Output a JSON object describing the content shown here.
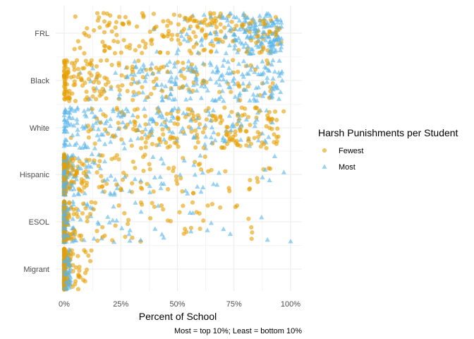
{
  "chart_data": {
    "type": "scatter",
    "title": "",
    "xlabel": "Percent of School",
    "ylabel": "",
    "caption": "Most = top 10%; Least = bottom 10%",
    "xlim": [
      0,
      100
    ],
    "x_ticks": [
      "0%",
      "25%",
      "50%",
      "75%",
      "100%"
    ],
    "x_tick_values": [
      0,
      25,
      50,
      75,
      100
    ],
    "categories": [
      "FRL",
      "Black",
      "White",
      "Hispanic",
      "ESOL",
      "Migrant"
    ],
    "grid": true,
    "jitter": "vertical within category",
    "legend": {
      "title": "Harsh Punishments per Student",
      "placement": "right",
      "entries": [
        "Fewest",
        "Most"
      ]
    },
    "series": [
      {
        "name": "Fewest",
        "color": "#E69F00",
        "shape": "circle",
        "points_per_category": {
          "FRL": 200,
          "Black": 190,
          "White": 190,
          "Hispanic": 260,
          "ESOL": 260,
          "Migrant": 170
        },
        "distribution_by_category": {
          "FRL": {
            "range": [
              4,
              96
            ],
            "mean": 52
          },
          "Black": {
            "range": [
              0,
              93
            ],
            "mean": 22
          },
          "White": {
            "range": [
              0,
              97
            ],
            "mean": 62
          },
          "Hispanic": {
            "range": [
              0,
              91
            ],
            "mean": 9
          },
          "ESOL": {
            "range": [
              0,
              83
            ],
            "mean": 6
          },
          "Migrant": {
            "range": [
              0,
              12
            ],
            "mean": 1
          }
        },
        "outliers": [
          {
            "category": "Hispanic",
            "x": 82
          },
          {
            "category": "Hispanic",
            "x": 88
          },
          {
            "category": "Hispanic",
            "x": 91
          },
          {
            "category": "Hispanic",
            "x": 65
          },
          {
            "category": "Hispanic",
            "x": 57
          },
          {
            "category": "Hispanic",
            "x": 73
          },
          {
            "category": "ESOL",
            "x": 83
          },
          {
            "category": "ESOL",
            "x": 54
          },
          {
            "category": "ESOL",
            "x": 47
          },
          {
            "category": "ESOL",
            "x": 38
          },
          {
            "category": "ESOL",
            "x": 60
          },
          {
            "category": "Migrant",
            "x": 12
          },
          {
            "category": "Migrant",
            "x": 10
          }
        ]
      },
      {
        "name": "Most",
        "color": "#56B4E9",
        "shape": "triangle",
        "points_per_category": {
          "FRL": 190,
          "Black": 200,
          "White": 200,
          "Hispanic": 220,
          "ESOL": 240,
          "Migrant": 100
        },
        "distribution_by_category": {
          "FRL": {
            "range": [
              30,
              96
            ],
            "mean": 82
          },
          "Black": {
            "range": [
              3,
              97
            ],
            "mean": 65
          },
          "White": {
            "range": [
              0,
              92
            ],
            "mean": 32
          },
          "Hispanic": {
            "range": [
              0,
              97
            ],
            "mean": 10
          },
          "ESOL": {
            "range": [
              0,
              100
            ],
            "mean": 6
          },
          "Migrant": {
            "range": [
              0,
              3
            ],
            "mean": 1
          }
        },
        "outliers": [
          {
            "category": "Hispanic",
            "x": 97
          },
          {
            "category": "Hispanic",
            "x": 93
          },
          {
            "category": "Hispanic",
            "x": 40
          },
          {
            "category": "Hispanic",
            "x": 44
          },
          {
            "category": "ESOL",
            "x": 100
          },
          {
            "category": "ESOL",
            "x": 20
          },
          {
            "category": "ESOL",
            "x": 22
          }
        ]
      }
    ]
  }
}
